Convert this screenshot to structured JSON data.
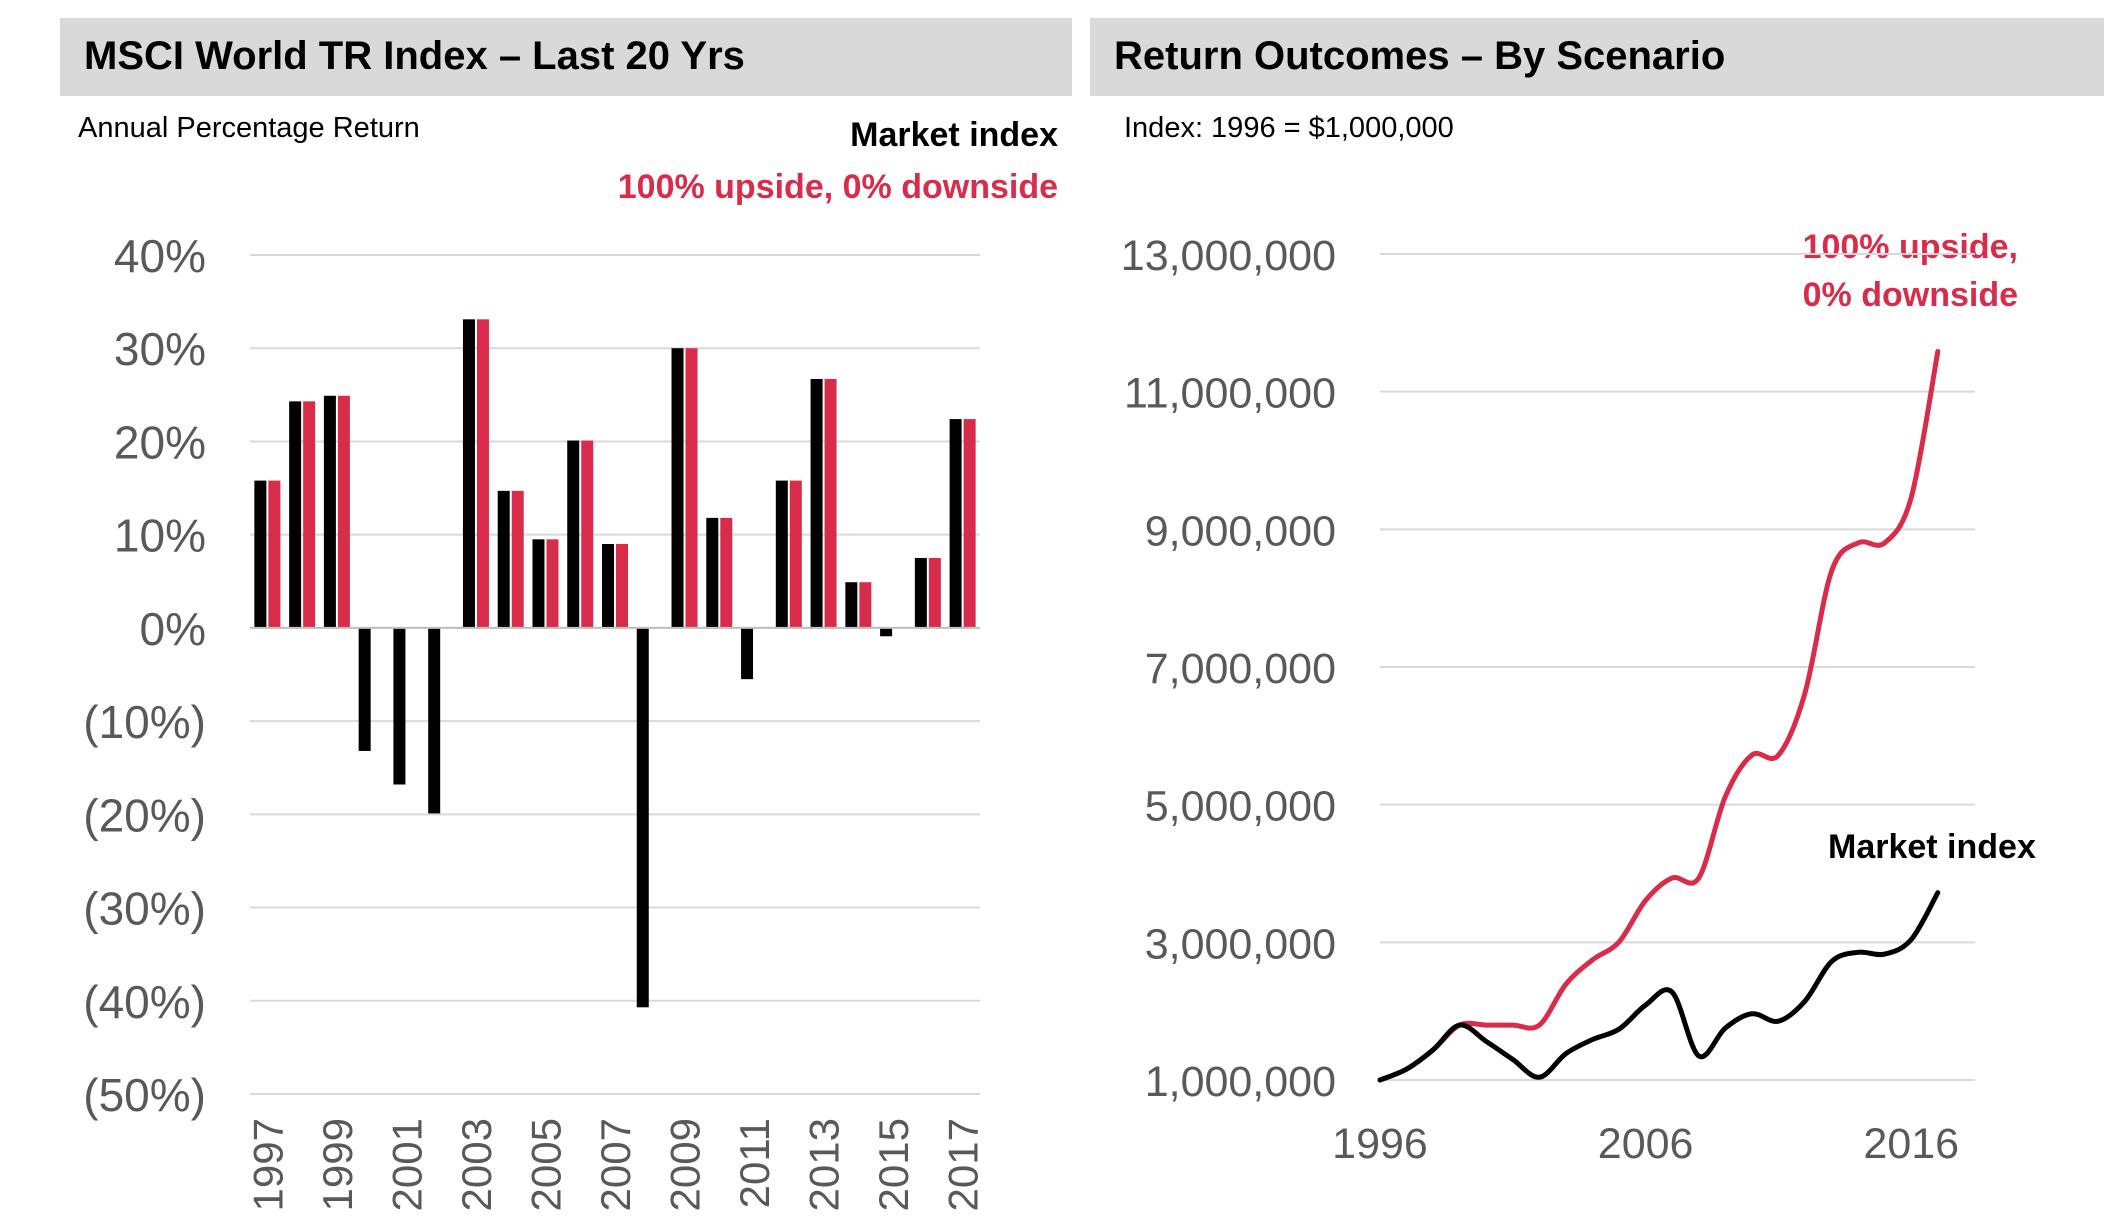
{
  "left_panel": {
    "title": "MSCI World TR Index – Last 20 Yrs",
    "subtitle": "Annual Percentage Return",
    "legend": [
      "Market index",
      "100% upside, 0% downside"
    ]
  },
  "right_panel": {
    "title": "Return Outcomes – By Scenario",
    "subtitle": "Index: 1996 = $1,000,000",
    "label_upside_line1": "100% upside,",
    "label_upside_line2": "0% downside",
    "label_market": "Market index"
  },
  "colors": {
    "market": "#000000",
    "upside": "#d92c4a",
    "grid": "#d9d9d9",
    "tick": "#595959"
  },
  "chart_data": [
    {
      "type": "bar",
      "ylabel": "Annual Percentage Return",
      "categories": [
        "1997",
        "1998",
        "1999",
        "2000",
        "2001",
        "2002",
        "2003",
        "2004",
        "2005",
        "2006",
        "2007",
        "2008",
        "2009",
        "2010",
        "2011",
        "2012",
        "2013",
        "2014",
        "2015",
        "2016",
        "2017"
      ],
      "x_tick_labels": [
        "1997",
        "1999",
        "2001",
        "2003",
        "2005",
        "2007",
        "2009",
        "2011",
        "2013",
        "2015",
        "2017"
      ],
      "y_tick_labels": [
        "40%",
        "30%",
        "20%",
        "10%",
        "0%",
        "(10%)",
        "(20%)",
        "(30%)",
        "(40%)",
        "(50%)"
      ],
      "ylim": [
        -50,
        40
      ],
      "series": [
        {
          "name": "Market index",
          "values": [
            15.8,
            24.3,
            24.9,
            -13.2,
            -16.8,
            -19.9,
            33.1,
            14.7,
            9.5,
            20.1,
            9.0,
            -40.7,
            30.0,
            11.8,
            -5.5,
            15.8,
            26.7,
            4.9,
            -0.9,
            7.5,
            22.4
          ]
        },
        {
          "name": "100% upside, 0% downside",
          "values": [
            15.8,
            24.3,
            24.9,
            0,
            0,
            0,
            33.1,
            14.7,
            9.5,
            20.1,
            9.0,
            0,
            30.0,
            11.8,
            0,
            15.8,
            26.7,
            4.9,
            0,
            7.5,
            22.4
          ]
        }
      ],
      "grid": true
    },
    {
      "type": "line",
      "ylabel": "Index: 1996 = $1,000,000",
      "x": [
        1996,
        1997,
        1998,
        1999,
        2000,
        2001,
        2002,
        2003,
        2004,
        2005,
        2006,
        2007,
        2008,
        2009,
        2010,
        2011,
        2012,
        2013,
        2014,
        2015,
        2016,
        2017
      ],
      "x_tick_labels": [
        "1996",
        "2006",
        "2016"
      ],
      "xlim": [
        1996,
        2018.4
      ],
      "y_tick_labels": [
        "13,000,000",
        "11,000,000",
        "9,000,000",
        "7,000,000",
        "5,000,000",
        "3,000,000",
        "1,000,000"
      ],
      "ylim": [
        1000000,
        13000000
      ],
      "series": [
        {
          "name": "Market index",
          "values": [
            1000000,
            1158000,
            1439000,
            1798000,
            1560000,
            1298000,
            1040000,
            1384000,
            1588000,
            1739000,
            2088000,
            2276000,
            1350000,
            1755000,
            1962000,
            1854000,
            2147000,
            2721000,
            2855000,
            2829000,
            3041000,
            3722000
          ]
        },
        {
          "name": "100% upside, 0% downside",
          "values": [
            1000000,
            1158000,
            1439000,
            1798000,
            1798000,
            1798000,
            1798000,
            2393000,
            2745000,
            3006000,
            3610000,
            3935000,
            3935000,
            5116000,
            5720000,
            5720000,
            6624000,
            8393000,
            8804000,
            8804000,
            9464000,
            11584000
          ]
        }
      ],
      "grid": true
    }
  ]
}
